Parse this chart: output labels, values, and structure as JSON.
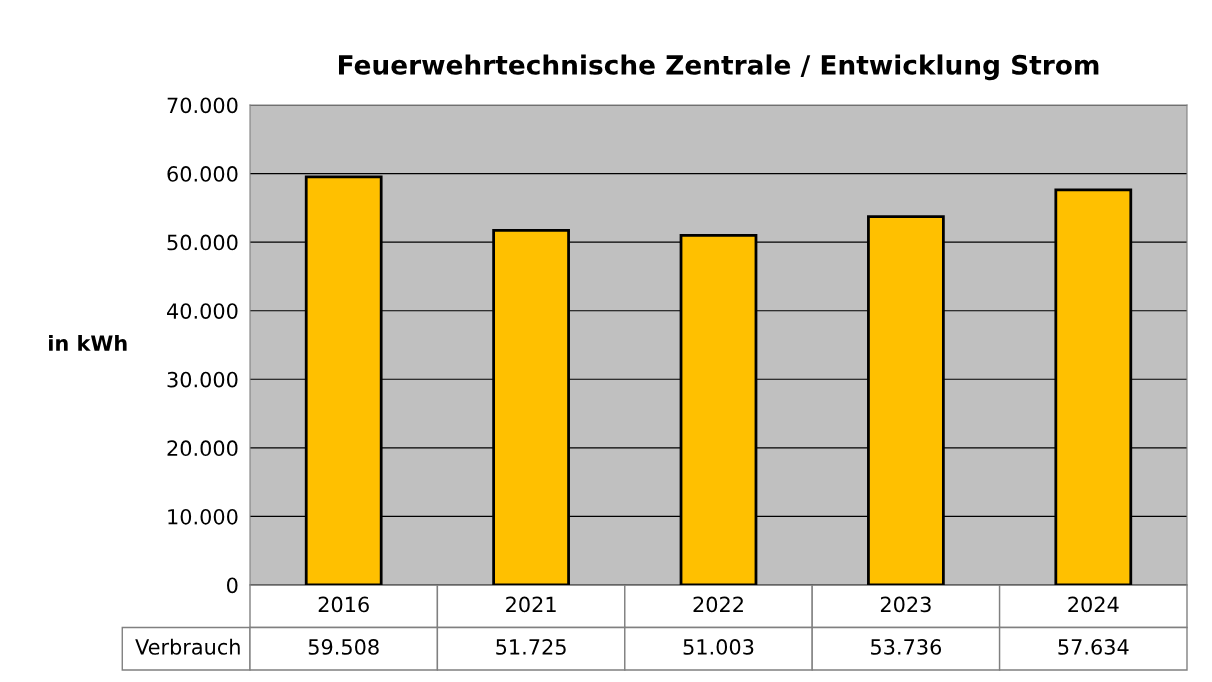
{
  "chart_data": {
    "type": "bar",
    "title": "Feuerwehrtechnische Zentrale / Entwicklung Strom",
    "ylabel": "in kWh",
    "categories": [
      "2016",
      "2021",
      "2022",
      "2023",
      "2024"
    ],
    "series": [
      {
        "name": "Verbrauch",
        "color": "#ffc000",
        "values": [
          59508,
          51725,
          51003,
          53736,
          57634
        ],
        "value_labels": [
          "59.508",
          "51.725",
          "51.003",
          "53.736",
          "57.634"
        ]
      }
    ],
    "ylim": [
      0,
      70000
    ],
    "yticks": [
      0,
      {
        "value": 10000,
        "label": "10.000"
      },
      {
        "value": 20000,
        "label": "20.000"
      },
      {
        "value": 30000,
        "label": "30.000"
      },
      {
        "value": 40000,
        "label": "40.000"
      },
      {
        "value": 50000,
        "label": "50.000"
      },
      {
        "value": 60000,
        "label": "60.000"
      },
      {
        "value": 70000,
        "label": "70.000"
      }
    ],
    "grid": "y",
    "legend": false
  }
}
